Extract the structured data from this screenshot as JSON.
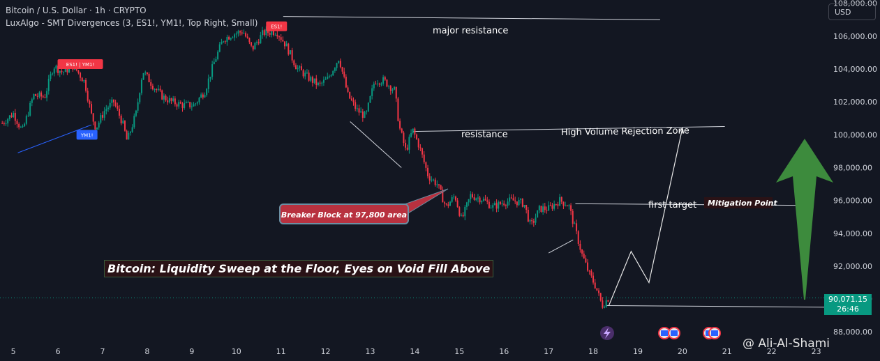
{
  "header": {
    "symbol_line": "Bitcoin / U.S. Dollar · 1h · CRYPTO",
    "indicator_line": "LuxAlgo - SMT Divergences (3, ES1!, YM1!, Top Right, Small)"
  },
  "toolbar": {
    "currency_label": "USD"
  },
  "price_tag": {
    "price": "90,071.15",
    "countdown": "26:46",
    "color": "#089981"
  },
  "watermark": {
    "text": "@ Ali-Al-Shami"
  },
  "colors": {
    "background": "#131722",
    "up": "#089981",
    "down": "#f23645",
    "annotation": "#d1d4dc",
    "arrow": "#3d8b3d"
  },
  "chart_data": {
    "type": "candlestick",
    "title": "Bitcoin: Liquidity Sweep at the Floor, Eyes on Void Fill Above",
    "x_ticks": [
      "5",
      "6",
      "7",
      "8",
      "9",
      "10",
      "11",
      "12",
      "13",
      "14",
      "15",
      "16",
      "17",
      "18",
      "19",
      "20",
      "21",
      "22",
      "23"
    ],
    "y_ticks": [
      "88,000.00",
      "90,000.00",
      "92,000.00",
      "94,000.00",
      "96,000.00",
      "98,000.00",
      "100,000.00",
      "102,000.00",
      "104,000.00",
      "106,000.00",
      "108,000.00"
    ],
    "ylim": [
      87500,
      108200
    ],
    "xlim": [
      4.7,
      23.1
    ],
    "last_price": 90071.15,
    "price_path": [
      [
        4.75,
        100700
      ],
      [
        5.0,
        101300
      ],
      [
        5.2,
        100200
      ],
      [
        5.45,
        102400
      ],
      [
        5.7,
        102300
      ],
      [
        5.9,
        104200
      ],
      [
        6.1,
        103800
      ],
      [
        6.35,
        104200
      ],
      [
        6.6,
        103200
      ],
      [
        6.75,
        101200
      ],
      [
        6.85,
        100400
      ],
      [
        7.05,
        101500
      ],
      [
        7.25,
        102000
      ],
      [
        7.45,
        100700
      ],
      [
        7.55,
        99600
      ],
      [
        7.75,
        101300
      ],
      [
        7.9,
        103900
      ],
      [
        8.15,
        102900
      ],
      [
        8.35,
        102300
      ],
      [
        8.55,
        102000
      ],
      [
        8.8,
        101800
      ],
      [
        9.05,
        101800
      ],
      [
        9.3,
        102700
      ],
      [
        9.5,
        104400
      ],
      [
        9.7,
        105800
      ],
      [
        9.9,
        106100
      ],
      [
        10.15,
        106300
      ],
      [
        10.35,
        105200
      ],
      [
        10.6,
        106200
      ],
      [
        10.9,
        106300
      ],
      [
        11.1,
        105500
      ],
      [
        11.35,
        104100
      ],
      [
        11.6,
        103500
      ],
      [
        11.85,
        103000
      ],
      [
        12.05,
        103400
      ],
      [
        12.3,
        104700
      ],
      [
        12.5,
        102400
      ],
      [
        12.7,
        101500
      ],
      [
        12.9,
        101100
      ],
      [
        13.1,
        103300
      ],
      [
        13.3,
        103300
      ],
      [
        13.55,
        102700
      ],
      [
        13.65,
        100500
      ],
      [
        13.8,
        99000
      ],
      [
        13.95,
        100300
      ],
      [
        14.1,
        99300
      ],
      [
        14.3,
        97500
      ],
      [
        14.5,
        97000
      ],
      [
        14.7,
        95600
      ],
      [
        14.9,
        96300
      ],
      [
        15.05,
        94800
      ],
      [
        15.25,
        96300
      ],
      [
        15.5,
        96100
      ],
      [
        15.75,
        95600
      ],
      [
        16.0,
        95900
      ],
      [
        16.2,
        96000
      ],
      [
        16.45,
        95800
      ],
      [
        16.6,
        94400
      ],
      [
        16.8,
        95500
      ],
      [
        17.0,
        95500
      ],
      [
        17.25,
        96000
      ],
      [
        17.45,
        95700
      ],
      [
        17.6,
        94200
      ],
      [
        17.75,
        92700
      ],
      [
        17.9,
        91600
      ],
      [
        18.05,
        90800
      ],
      [
        18.2,
        89600
      ],
      [
        18.35,
        90100
      ]
    ],
    "up_color": "#089981",
    "down_color": "#f23645",
    "annotations": [
      {
        "text": "major resistance",
        "kind": "label"
      },
      {
        "text": "resistance",
        "kind": "label"
      },
      {
        "text": "High Volume Rejection Zone",
        "kind": "label"
      },
      {
        "text": "first target",
        "kind": "label"
      },
      {
        "text": "Mitigation Point",
        "kind": "badge"
      },
      {
        "text": "Breaker Block at 97,800 area",
        "kind": "callout"
      }
    ],
    "smt_labels": [
      {
        "text": "ES1!",
        "x": 10.9,
        "price": 106600,
        "color": "#f23645"
      },
      {
        "text": "ES1! | YM1!",
        "x": 6.5,
        "price": 104300,
        "color": "#f23645"
      },
      {
        "text": "YM1!",
        "x": 6.65,
        "price": 100000,
        "color": "#2962ff"
      }
    ],
    "lines": [
      {
        "name": "major-resistance-line",
        "from": [
          11.05,
          107200
        ],
        "to": [
          19.5,
          107000
        ],
        "color": "#d1d4dc"
      },
      {
        "name": "resistance-line",
        "from": [
          13.95,
          100200
        ],
        "to": [
          20.95,
          100500
        ],
        "color": "#d1d4dc"
      },
      {
        "name": "first-target-line",
        "from": [
          17.6,
          95800
        ],
        "to": [
          22.8,
          95700
        ],
        "color": "#d1d4dc"
      },
      {
        "name": "support-line",
        "from": [
          18.3,
          89600
        ],
        "to": [
          23.4,
          89500
        ],
        "color": "#d1d4dc"
      },
      {
        "name": "smt-divergence-line",
        "from": [
          5.1,
          98900
        ],
        "to": [
          6.75,
          100600
        ],
        "color": "#2962ff"
      },
      {
        "name": "trend-line-1",
        "from": [
          12.55,
          100800
        ],
        "to": [
          13.7,
          98000
        ],
        "color": "#d1d4dc"
      },
      {
        "name": "trend-line-2",
        "from": [
          17.0,
          92800
        ],
        "to": [
          17.55,
          93600
        ],
        "color": "#d1d4dc"
      }
    ],
    "projection": [
      [
        18.35,
        89600
      ],
      [
        18.85,
        92900
      ],
      [
        19.25,
        91000
      ],
      [
        20.0,
        100400
      ]
    ]
  }
}
